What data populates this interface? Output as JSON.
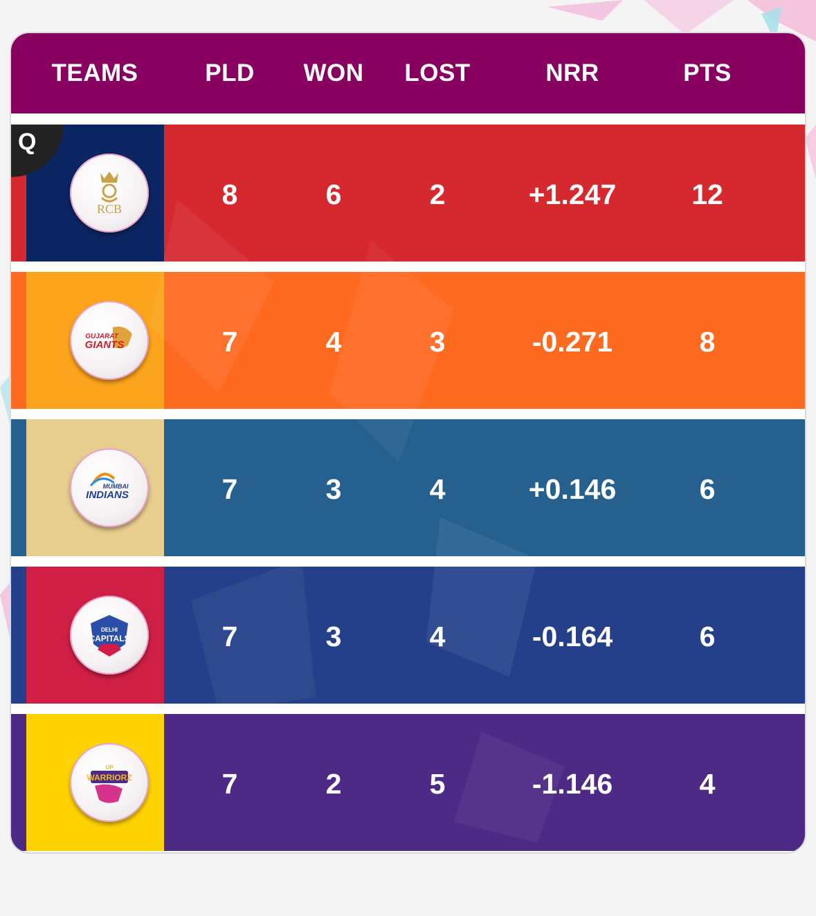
{
  "table": {
    "headers": {
      "teams": "TEAMS",
      "pld": "PLD",
      "won": "WON",
      "lost": "LOST",
      "nrr": "NRR",
      "pts": "PTS"
    },
    "qualified_badge": "Q",
    "rows": [
      {
        "team_logo": "rcb-logo-icon",
        "logo_text": "RCB",
        "pld": "8",
        "won": "6",
        "lost": "2",
        "nrr": "+1.247",
        "pts": "12",
        "qualified": true,
        "colors": {
          "edge": "#d6282f",
          "logo_bg": "#0c2563",
          "stats_bg": "#d6282f"
        }
      },
      {
        "team_logo": "gujarat-giants-logo-icon",
        "logo_text": "GUJARAT GIANTS",
        "pld": "7",
        "won": "4",
        "lost": "3",
        "nrr": "-0.271",
        "pts": "8",
        "qualified": false,
        "colors": {
          "edge": "#ff6a21",
          "logo_bg": "#fca41c",
          "stats_bg": "#ff6a21"
        }
      },
      {
        "team_logo": "mumbai-indians-logo-icon",
        "logo_text": "MUMBAI INDIANS",
        "pld": "7",
        "won": "3",
        "lost": "4",
        "nrr": "+0.146",
        "pts": "6",
        "qualified": false,
        "colors": {
          "edge": "#25608f",
          "logo_bg": "#e7cd8e",
          "stats_bg": "#25608f"
        }
      },
      {
        "team_logo": "delhi-capitals-logo-icon",
        "logo_text": "DELHI CAPITALS",
        "pld": "7",
        "won": "3",
        "lost": "4",
        "nrr": "-0.164",
        "pts": "6",
        "qualified": false,
        "colors": {
          "edge": "#24408a",
          "logo_bg": "#cf1f44",
          "stats_bg": "#24408a"
        }
      },
      {
        "team_logo": "up-warriorz-logo-icon",
        "logo_text": "UP WARRIORZ",
        "pld": "7",
        "won": "2",
        "lost": "5",
        "nrr": "-1.146",
        "pts": "4",
        "qualified": false,
        "colors": {
          "edge": "#4d2a86",
          "logo_bg": "#fed301",
          "stats_bg": "#4d2a86"
        }
      }
    ]
  },
  "colors": {
    "header_bg": "#880060",
    "page_bg": "#f4f4f4",
    "text": "#ffffff"
  }
}
